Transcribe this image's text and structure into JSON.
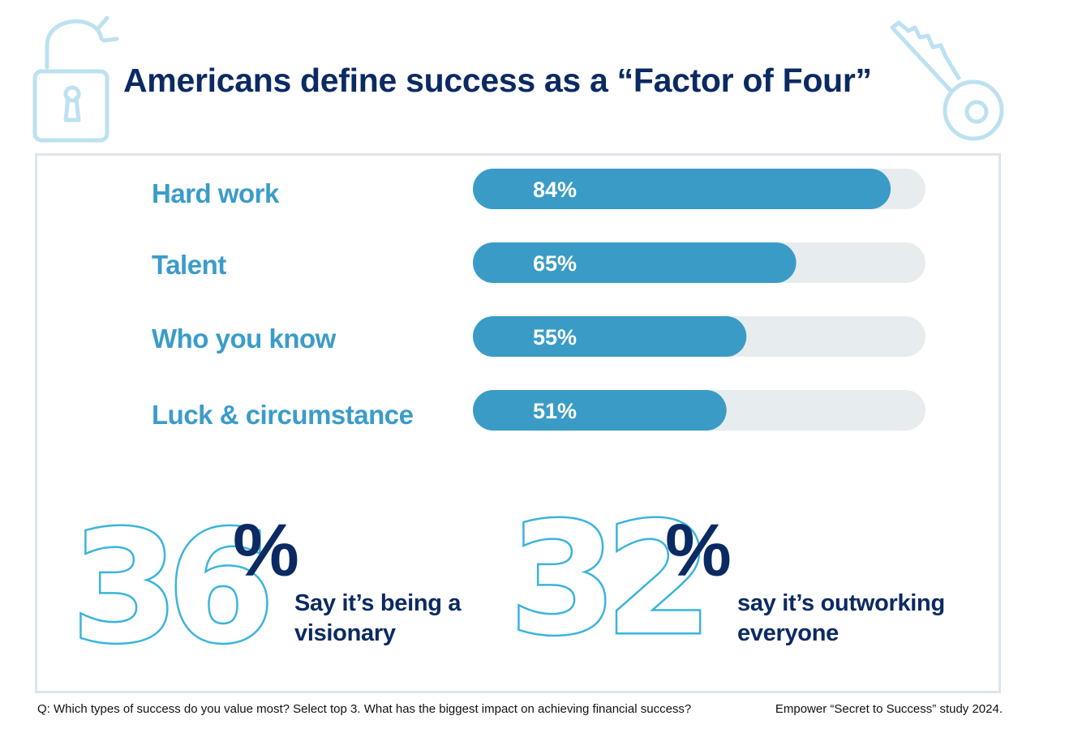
{
  "title": "Americans define success as a “Factor of Four”",
  "icons": {
    "top_left": "open-padlock-icon",
    "top_right": "key-icon"
  },
  "colors": {
    "title": "#0b2a63",
    "bar_fill": "#3a9cc6",
    "bar_track": "#e7ecef",
    "label": "#3b9cc9",
    "big_number_outline": "#3bb4dc",
    "frame": "#dde5ec"
  },
  "chart_data": {
    "type": "bar",
    "orientation": "horizontal",
    "categories": [
      "Hard work",
      "Talent",
      "Who you know",
      "Luck & circumstance"
    ],
    "values": [
      84,
      65,
      55,
      51
    ],
    "value_labels": [
      "84%",
      "65%",
      "55%",
      "51%"
    ],
    "xlim": [
      0,
      100
    ],
    "grid": false
  },
  "stats": [
    {
      "number": "36",
      "symbol": "%",
      "text_line1": "Say it’s being a",
      "text_line2": "visionary"
    },
    {
      "number": "32",
      "symbol": "%",
      "text_line1": "say it’s outworking",
      "text_line2": "everyone"
    }
  ],
  "footer": {
    "question": "Q: Which types of success do you value most? Select top 3.  What has the biggest impact on achieving financial success?",
    "source": "Empower “Secret to Success” study 2024."
  }
}
